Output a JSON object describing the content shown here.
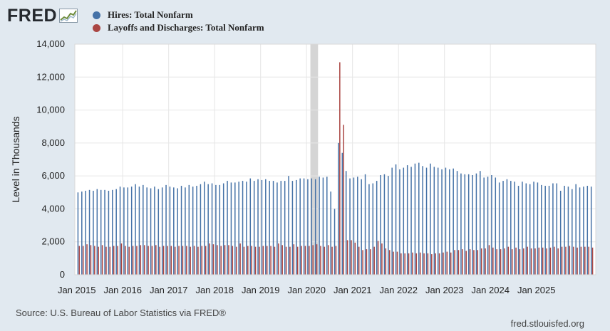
{
  "brand": {
    "name": "FRED"
  },
  "legend": [
    {
      "label": "Hires: Total Nonfarm",
      "color": "#4572a7"
    },
    {
      "label": "Layoffs and Discharges: Total Nonfarm",
      "color": "#aa4643"
    }
  ],
  "source": "Source: U.S. Bureau of Labor Statistics via FRED®",
  "site": "fred.stlouisfed.org",
  "chart_data": {
    "type": "bar",
    "title": "",
    "xlabel": "",
    "ylabel": "Level in Thousands",
    "ylim": [
      0,
      14000
    ],
    "yticks": [
      "0",
      "2,000",
      "4,000",
      "6,000",
      "8,000",
      "10,000",
      "12,000",
      "14,000"
    ],
    "xticks": [
      "Jan 2015",
      "Jan 2016",
      "Jan 2017",
      "Jan 2018",
      "Jan 2019",
      "Jan 2020",
      "Jan 2021",
      "Jan 2022",
      "Jan 2023",
      "Jan 2024",
      "Jan 2025"
    ],
    "start": "Jan 2015",
    "grid": true,
    "legend_position": "top-left",
    "recession": {
      "start_index": 61,
      "end_index": 63
    },
    "series": [
      {
        "name": "Hires: Total Nonfarm",
        "color": "#4572a7",
        "values": [
          5000,
          5050,
          5100,
          5150,
          5100,
          5200,
          5150,
          5150,
          5100,
          5150,
          5200,
          5350,
          5300,
          5300,
          5350,
          5500,
          5350,
          5450,
          5300,
          5250,
          5350,
          5200,
          5300,
          5450,
          5350,
          5300,
          5250,
          5400,
          5300,
          5450,
          5350,
          5400,
          5500,
          5650,
          5500,
          5550,
          5450,
          5450,
          5550,
          5700,
          5600,
          5600,
          5650,
          5700,
          5650,
          5850,
          5700,
          5800,
          5750,
          5800,
          5700,
          5700,
          5600,
          5700,
          5700,
          6000,
          5700,
          5750,
          5850,
          5850,
          5800,
          5850,
          5800,
          5950,
          5900,
          5950,
          5050,
          4000,
          8000,
          7400,
          6300,
          5850,
          5900,
          5950,
          5800,
          6100,
          5500,
          5550,
          5700,
          6050,
          6100,
          6000,
          6500,
          6700,
          6400,
          6500,
          6650,
          6550,
          6750,
          6800,
          6600,
          6500,
          6750,
          6550,
          6500,
          6400,
          6500,
          6400,
          6450,
          6300,
          6150,
          6100,
          6100,
          6050,
          6150,
          6300,
          5900,
          5950,
          6050,
          5900,
          5600,
          5700,
          5800,
          5700,
          5650,
          5400,
          5650,
          5550,
          5500,
          5650,
          5600,
          5450,
          5400,
          5400,
          5550,
          5550,
          5100,
          5400,
          5350,
          5200,
          5500,
          5300,
          5350,
          5400,
          5350
        ]
      },
      {
        "name": "Layoffs and Discharges: Total Nonfarm",
        "color": "#aa4643",
        "values": [
          1750,
          1750,
          1850,
          1800,
          1750,
          1700,
          1800,
          1700,
          1700,
          1750,
          1750,
          1900,
          1750,
          1700,
          1750,
          1750,
          1800,
          1800,
          1750,
          1750,
          1800,
          1700,
          1750,
          1750,
          1750,
          1700,
          1750,
          1750,
          1750,
          1700,
          1750,
          1700,
          1750,
          1750,
          1900,
          1850,
          1800,
          1750,
          1800,
          1800,
          1750,
          1700,
          1900,
          1700,
          1750,
          1750,
          1700,
          1700,
          1750,
          1750,
          1750,
          1700,
          1900,
          1800,
          1700,
          1700,
          1850,
          1700,
          1750,
          1750,
          1750,
          1800,
          1850,
          1750,
          1700,
          1800,
          1700,
          1750,
          12900,
          9100,
          2100,
          2100,
          1950,
          1700,
          1500,
          1550,
          1550,
          1700,
          2050,
          1900,
          1600,
          1500,
          1400,
          1400,
          1300,
          1300,
          1300,
          1350,
          1300,
          1350,
          1300,
          1300,
          1250,
          1300,
          1300,
          1350,
          1400,
          1350,
          1500,
          1500,
          1550,
          1450,
          1550,
          1500,
          1500,
          1600,
          1600,
          1800,
          1650,
          1550,
          1550,
          1600,
          1700,
          1550,
          1650,
          1550,
          1600,
          1700,
          1600,
          1600,
          1650,
          1650,
          1600,
          1650,
          1700,
          1600,
          1700,
          1700,
          1750,
          1700,
          1650,
          1700,
          1700,
          1700,
          1650
        ]
      }
    ]
  }
}
